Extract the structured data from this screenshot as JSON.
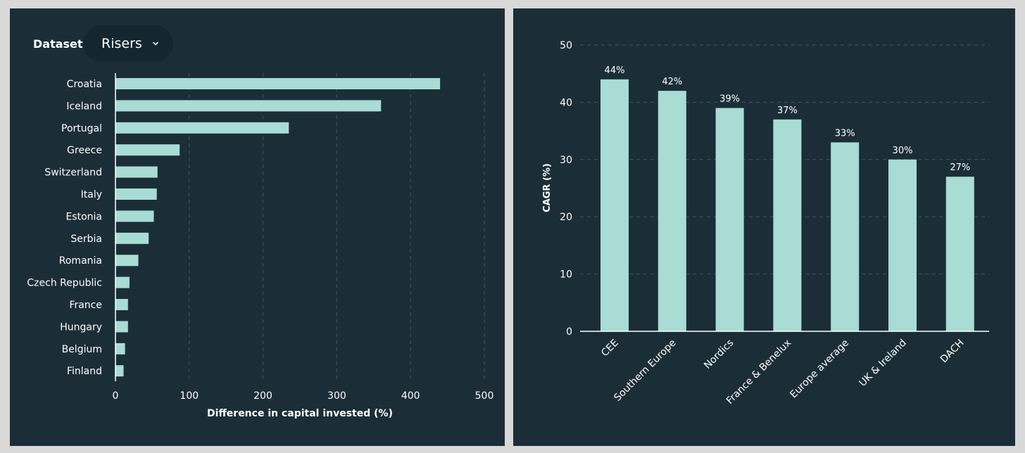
{
  "controls": {
    "dataset_label": "Dataset",
    "dataset_value": "Risers"
  },
  "colors": {
    "background": "#1b2e38",
    "bar": "#a8dcd4",
    "text": "#ffffff",
    "grid": "#3f5560"
  },
  "chart_data": [
    {
      "type": "bar",
      "orientation": "horizontal",
      "categories": [
        "Croatia",
        "Iceland",
        "Portugal",
        "Greece",
        "Switzerland",
        "Italy",
        "Estonia",
        "Serbia",
        "Romania",
        "Czech Republic",
        "France",
        "Hungary",
        "Belgium",
        "Finland"
      ],
      "values": [
        440,
        360,
        235,
        87,
        57,
        56,
        52,
        45,
        31,
        19,
        17,
        17,
        13,
        11
      ],
      "xlabel": "Difference in capital invested (%)",
      "ylabel": "",
      "xlim": [
        0,
        500
      ],
      "xticks": [
        "0",
        "100",
        "200",
        "300",
        "400",
        "500"
      ],
      "grid": "vertical dashed"
    },
    {
      "type": "bar",
      "orientation": "vertical",
      "categories": [
        "CEE",
        "Southern Europe",
        "Nordics",
        "France & Benelux",
        "Europe average",
        "UK & Ireland",
        "DACH"
      ],
      "values": [
        44,
        42,
        39,
        37,
        33,
        30,
        27
      ],
      "data_labels": [
        "44%",
        "42%",
        "39%",
        "37%",
        "33%",
        "30%",
        "27%"
      ],
      "xlabel": "",
      "ylabel": "CAGR (%)",
      "ylim": [
        0,
        50
      ],
      "yticks": [
        "0",
        "10",
        "20",
        "30",
        "40",
        "50"
      ],
      "grid": "horizontal dashed"
    }
  ]
}
